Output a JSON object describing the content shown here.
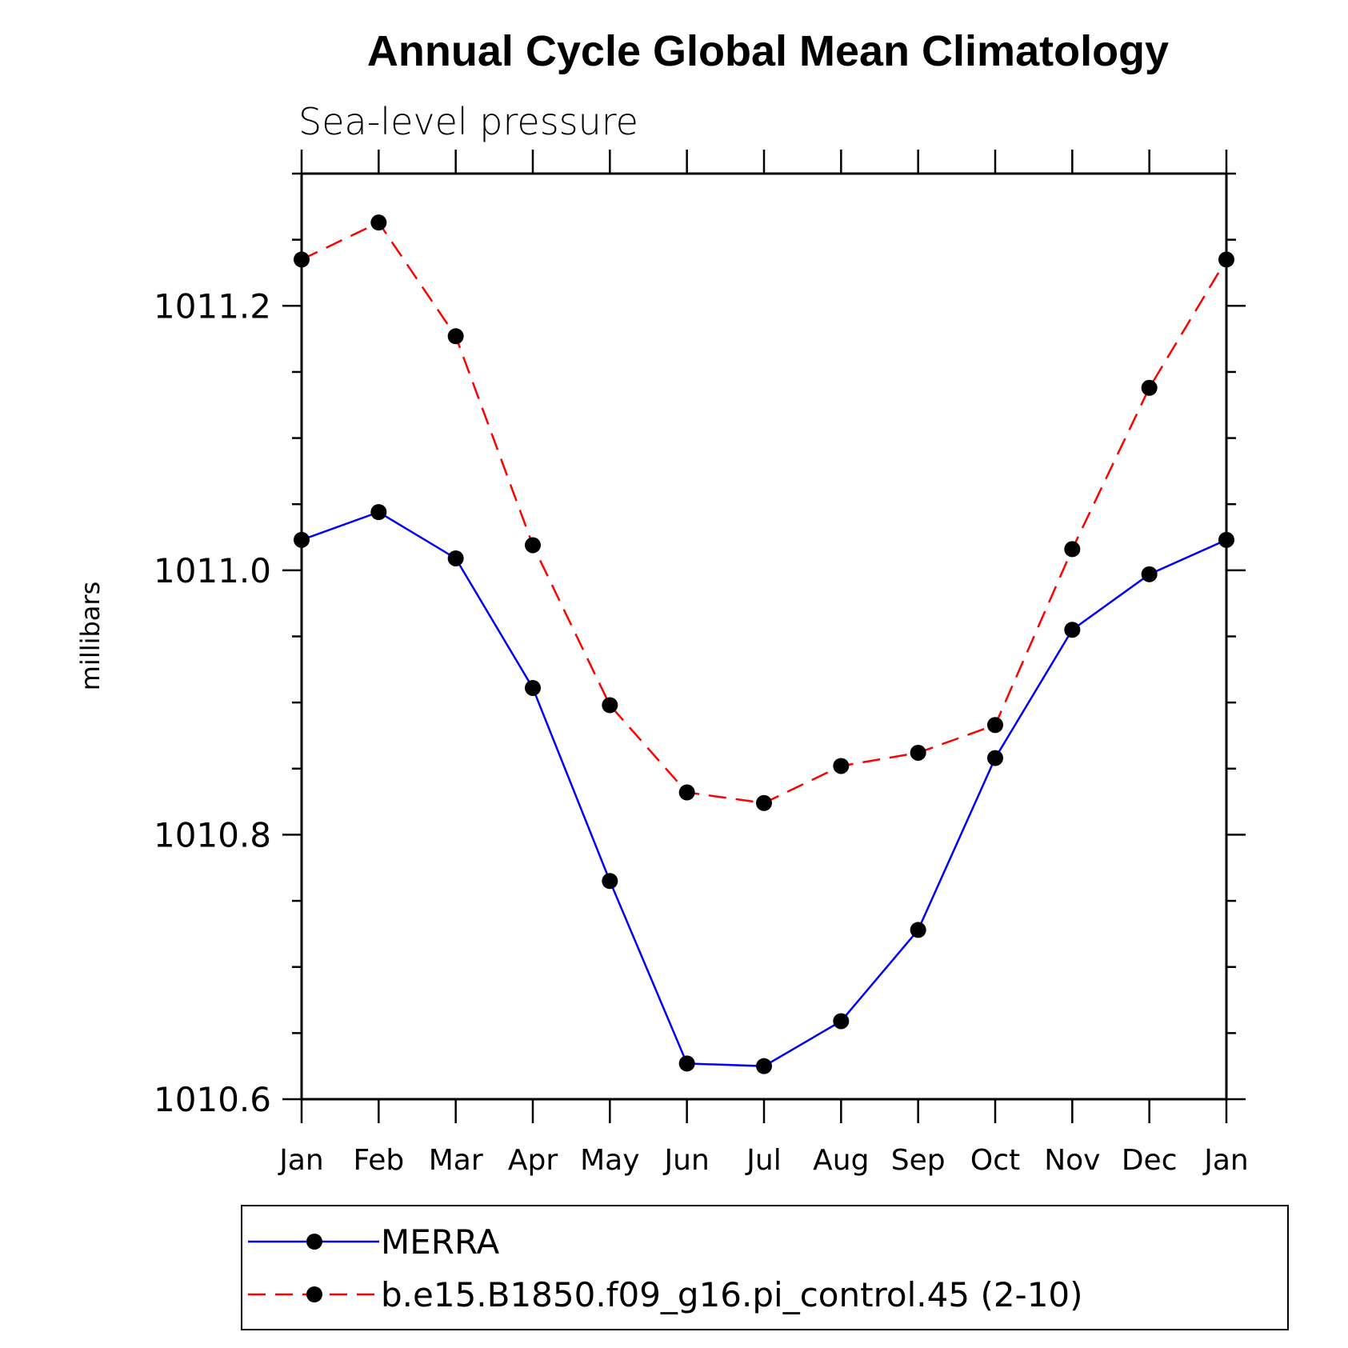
{
  "chart_data": {
    "type": "line",
    "title": "Annual Cycle Global Mean Climatology",
    "subtitle": "Sea-level pressure",
    "ylabel": "millibars",
    "xlabel": "",
    "categories": [
      "Jan",
      "Feb",
      "Mar",
      "Apr",
      "May",
      "Jun",
      "Jul",
      "Aug",
      "Sep",
      "Oct",
      "Nov",
      "Dec",
      "Jan"
    ],
    "ylim": [
      1010.6,
      1011.3
    ],
    "yticks": [
      1010.6,
      1010.8,
      1011.0,
      1011.2
    ],
    "ytick_labels": [
      "1010.6",
      "1010.8",
      "1011.0",
      "1011.2"
    ],
    "grid": false,
    "legend_position": "bottom",
    "series": [
      {
        "name": "MERRA",
        "color": "#0000ff",
        "dash": "solid",
        "values": [
          1011.023,
          1011.044,
          1011.009,
          1010.911,
          1010.765,
          1010.627,
          1010.625,
          1010.659,
          1010.728,
          1010.858,
          1010.955,
          1010.997,
          1011.023
        ]
      },
      {
        "name": "b.e15.B1850.f09_g16.pi_control.45 (2-10)",
        "color": "#ff0000",
        "dash": "dashed",
        "values": [
          1011.235,
          1011.263,
          1011.177,
          1011.019,
          1010.898,
          1010.832,
          1010.824,
          1010.852,
          1010.862,
          1010.883,
          1011.016,
          1011.138,
          1011.235
        ]
      }
    ]
  }
}
